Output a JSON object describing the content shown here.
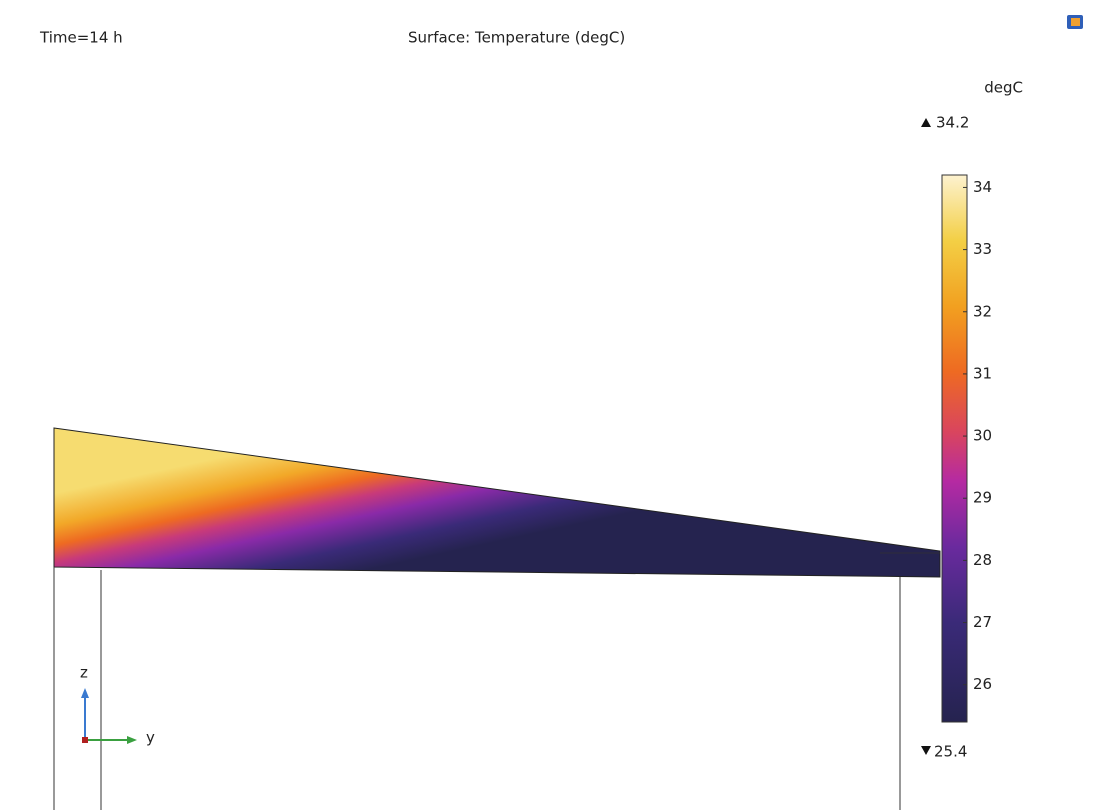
{
  "header": {
    "time": "Time=14 h",
    "title": "Surface: Temperature (degC)"
  },
  "colorbar": {
    "unit": "degC",
    "max": 34.2,
    "min": 25.4,
    "ticks": [
      26,
      27,
      28,
      29,
      30,
      31,
      32,
      33,
      34
    ]
  },
  "triad": {
    "z": "z",
    "y": "y"
  }
}
